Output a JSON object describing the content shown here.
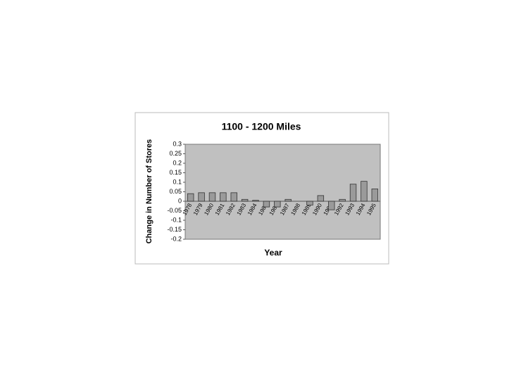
{
  "chart_data": {
    "type": "bar",
    "title": "1100 - 1200 Miles",
    "x_label": "Year",
    "y_label": "Change in Number of Stores",
    "categories": [
      "1978",
      "1979",
      "1980",
      "1981",
      "1982",
      "1983",
      "1984",
      "1985",
      "1986",
      "1987",
      "1988",
      "1989",
      "1990",
      "1991",
      "1992",
      "1993",
      "1994",
      "1995"
    ],
    "values": [
      0.04,
      0.045,
      0.045,
      0.045,
      0.045,
      0.01,
      0.005,
      -0.03,
      -0.03,
      0.01,
      0,
      -0.02,
      0.03,
      -0.045,
      0.01,
      0.09,
      0.105,
      0.065
    ],
    "color": "#9a9a9a",
    "ylim": [
      -0.2,
      0.3
    ],
    "yticks": [
      0.3,
      0.25,
      0.2,
      0.15,
      0.1,
      0.05,
      0,
      -0.05,
      -0.1,
      -0.15,
      -0.2
    ]
  }
}
